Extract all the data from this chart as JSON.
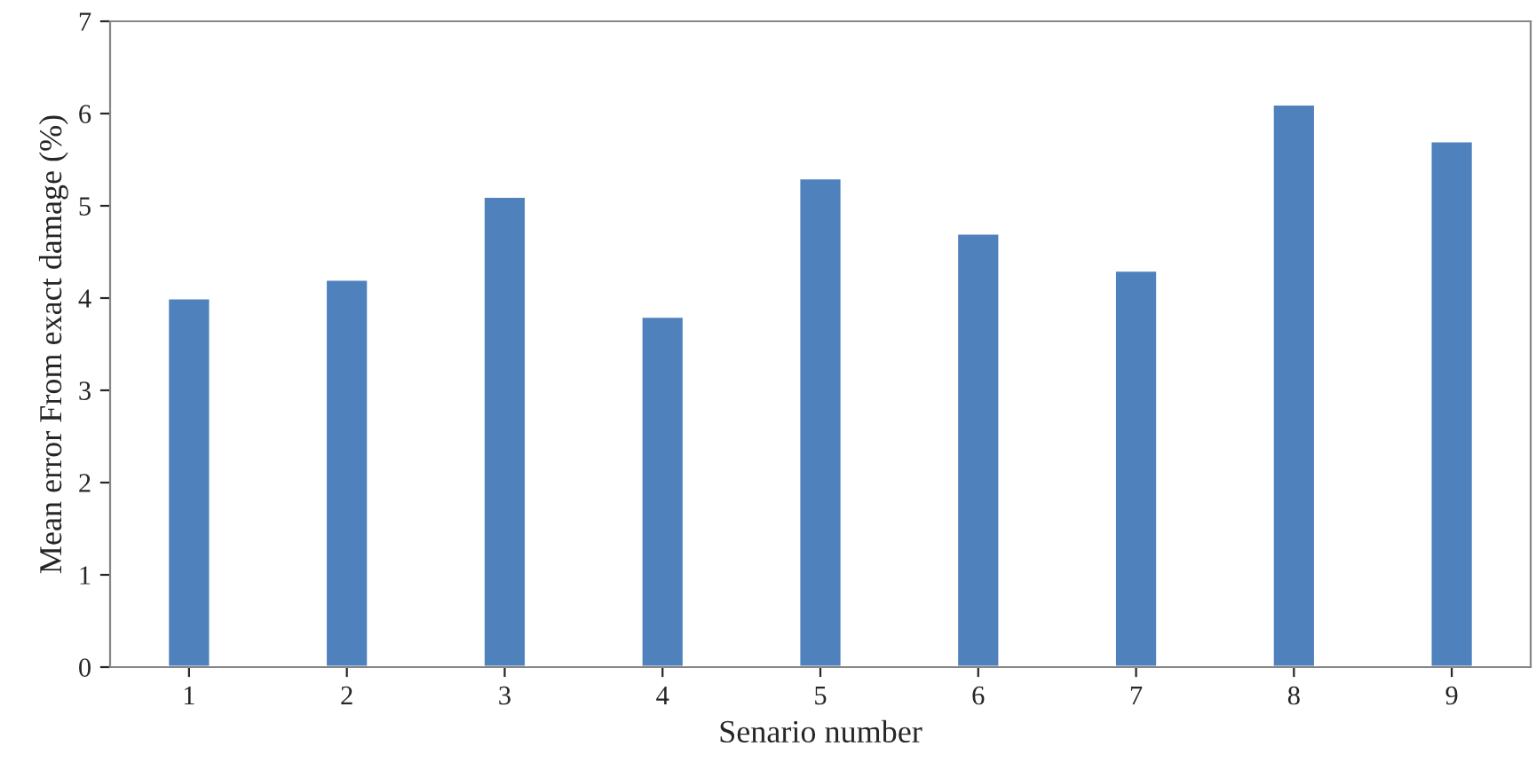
{
  "chart_data": {
    "type": "bar",
    "xlabel": "Senario number",
    "ylabel": "Mean error From exact damage (%)",
    "categories": [
      "1",
      "2",
      "3",
      "4",
      "5",
      "6",
      "7",
      "8",
      "9"
    ],
    "values": [
      4.0,
      4.2,
      5.1,
      3.8,
      5.3,
      4.7,
      4.3,
      6.1,
      5.7
    ],
    "color": "#4f81bd",
    "ylim": [
      0,
      7
    ],
    "yticks": [
      0,
      1,
      2,
      3,
      4,
      5,
      6,
      7
    ],
    "grid": false,
    "legend": false
  }
}
